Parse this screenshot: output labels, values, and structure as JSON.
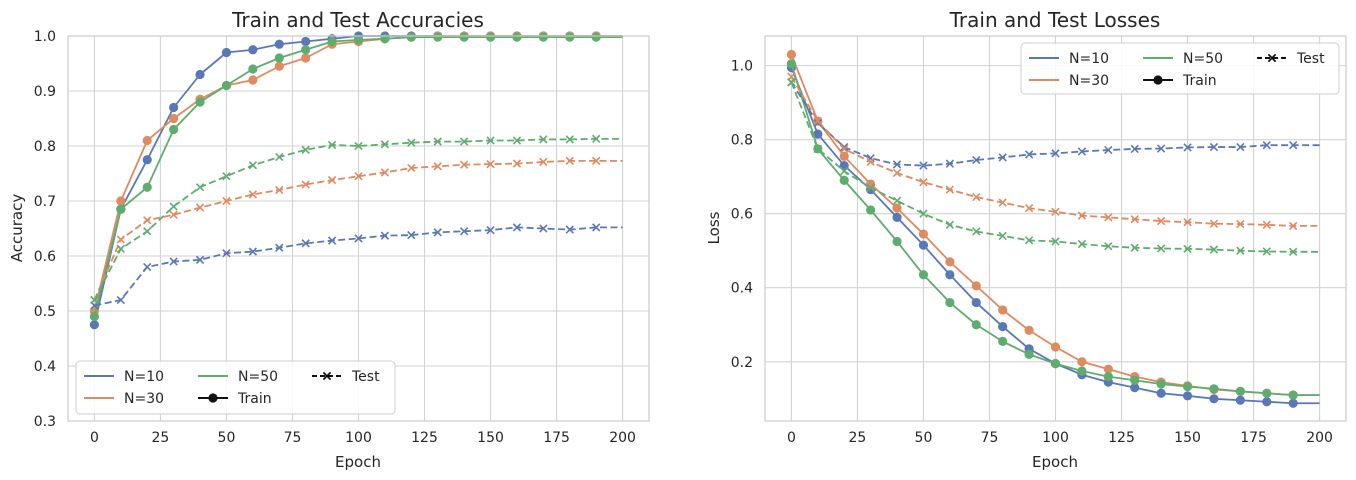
{
  "colors": {
    "N=10": "#5b78b6",
    "N=30": "#df8a5f",
    "N=50": "#5fad6e",
    "legend_black": "#111111",
    "grid": "#d3d3d3",
    "frame": "#cccccc"
  },
  "chart_data": [
    {
      "type": "line",
      "title": "Train and Test Accuracies",
      "xlabel": "Epoch",
      "ylabel": "Accuracy",
      "xlim": [
        -10,
        210
      ],
      "ylim": [
        0.3,
        1.0
      ],
      "xticks": [
        0,
        25,
        50,
        75,
        100,
        125,
        150,
        175,
        200
      ],
      "yticks": [
        0.3,
        0.4,
        0.5,
        0.6,
        0.7,
        0.8,
        0.9,
        1.0
      ],
      "xtick_labels": [
        "0",
        "25",
        "50",
        "75",
        "100",
        "125",
        "150",
        "175",
        "200"
      ],
      "ytick_labels": [
        "0.3",
        "0.4",
        "0.5",
        "0.6",
        "0.7",
        "0.8",
        "0.9",
        "1.0"
      ],
      "legend_location": "lower-left",
      "legend": {
        "n10": "N=10",
        "n30": "N=30",
        "n50": "N=50",
        "train": "Train",
        "test": "Test"
      },
      "marker_epochs": [
        0,
        10,
        20,
        30,
        40,
        50,
        60,
        70,
        80,
        90,
        100,
        110,
        120,
        130,
        140,
        150,
        160,
        170,
        180,
        190
      ],
      "series": [
        {
          "name": "N=10",
          "kind": "train",
          "values": [
            0.475,
            0.685,
            0.775,
            0.87,
            0.93,
            0.97,
            0.975,
            0.985,
            0.99,
            0.995,
            1.0,
            1.0,
            1.0,
            1.0,
            1.0,
            1.0,
            1.0,
            1.0,
            1.0,
            1.0
          ]
        },
        {
          "name": "N=30",
          "kind": "train",
          "values": [
            0.5,
            0.7,
            0.81,
            0.85,
            0.885,
            0.91,
            0.92,
            0.945,
            0.96,
            0.985,
            0.99,
            0.995,
            0.998,
            1.0,
            1.0,
            1.0,
            1.0,
            1.0,
            1.0,
            1.0
          ]
        },
        {
          "name": "N=50",
          "kind": "train",
          "values": [
            0.49,
            0.685,
            0.725,
            0.83,
            0.88,
            0.91,
            0.94,
            0.96,
            0.975,
            0.99,
            0.993,
            0.995,
            0.998,
            0.998,
            0.998,
            0.998,
            0.998,
            0.998,
            0.998,
            0.998
          ]
        },
        {
          "name": "N=10",
          "kind": "test",
          "values": [
            0.51,
            0.52,
            0.58,
            0.59,
            0.593,
            0.605,
            0.608,
            0.615,
            0.623,
            0.628,
            0.632,
            0.637,
            0.638,
            0.643,
            0.645,
            0.647,
            0.652,
            0.65,
            0.648,
            0.652
          ]
        },
        {
          "name": "N=30",
          "kind": "test",
          "values": [
            0.52,
            0.63,
            0.665,
            0.675,
            0.688,
            0.7,
            0.712,
            0.72,
            0.73,
            0.738,
            0.745,
            0.752,
            0.76,
            0.763,
            0.766,
            0.767,
            0.768,
            0.771,
            0.773,
            0.773
          ]
        },
        {
          "name": "N=50",
          "kind": "test",
          "values": [
            0.52,
            0.613,
            0.645,
            0.69,
            0.725,
            0.745,
            0.765,
            0.78,
            0.793,
            0.802,
            0.8,
            0.803,
            0.806,
            0.808,
            0.808,
            0.81,
            0.81,
            0.812,
            0.812,
            0.813
          ]
        }
      ]
    },
    {
      "type": "line",
      "title": "Train and Test Losses",
      "xlabel": "Epoch",
      "ylabel": "Loss",
      "xlim": [
        -10,
        210
      ],
      "ylim": [
        0.04,
        1.08
      ],
      "xticks": [
        0,
        25,
        50,
        75,
        100,
        125,
        150,
        175,
        200
      ],
      "yticks": [
        0.2,
        0.4,
        0.6,
        0.8,
        1.0
      ],
      "xtick_labels": [
        "0",
        "25",
        "50",
        "75",
        "100",
        "125",
        "150",
        "175",
        "200"
      ],
      "ytick_labels": [
        "0.2",
        "0.4",
        "0.6",
        "0.8",
        "1.0"
      ],
      "legend_location": "upper-right",
      "legend": {
        "n10": "N=10",
        "n30": "N=30",
        "n50": "N=50",
        "train": "Train",
        "test": "Test"
      },
      "marker_epochs": [
        0,
        10,
        20,
        30,
        40,
        50,
        60,
        70,
        80,
        90,
        100,
        110,
        120,
        130,
        140,
        150,
        160,
        170,
        180,
        190
      ],
      "series": [
        {
          "name": "N=10",
          "kind": "train",
          "values": [
            0.995,
            0.815,
            0.73,
            0.665,
            0.59,
            0.515,
            0.435,
            0.36,
            0.295,
            0.235,
            0.195,
            0.165,
            0.145,
            0.13,
            0.115,
            0.108,
            0.1,
            0.096,
            0.092,
            0.088
          ]
        },
        {
          "name": "N=30",
          "kind": "train",
          "values": [
            1.03,
            0.85,
            0.755,
            0.68,
            0.615,
            0.545,
            0.47,
            0.405,
            0.34,
            0.285,
            0.24,
            0.2,
            0.18,
            0.16,
            0.145,
            0.135,
            0.125,
            0.12,
            0.115,
            0.11
          ]
        },
        {
          "name": "N=50",
          "kind": "train",
          "values": [
            1.005,
            0.775,
            0.69,
            0.61,
            0.525,
            0.435,
            0.36,
            0.3,
            0.255,
            0.22,
            0.195,
            0.175,
            0.16,
            0.15,
            0.14,
            0.133,
            0.127,
            0.12,
            0.115,
            0.11
          ]
        },
        {
          "name": "N=10",
          "kind": "test",
          "values": [
            0.955,
            0.845,
            0.78,
            0.75,
            0.733,
            0.73,
            0.735,
            0.745,
            0.752,
            0.76,
            0.763,
            0.768,
            0.772,
            0.775,
            0.776,
            0.779,
            0.78,
            0.78,
            0.785,
            0.785
          ]
        },
        {
          "name": "N=30",
          "kind": "test",
          "values": [
            0.97,
            0.85,
            0.775,
            0.74,
            0.71,
            0.685,
            0.665,
            0.645,
            0.63,
            0.615,
            0.605,
            0.595,
            0.59,
            0.585,
            0.58,
            0.577,
            0.573,
            0.572,
            0.57,
            0.567
          ]
        },
        {
          "name": "N=50",
          "kind": "test",
          "values": [
            0.955,
            0.775,
            0.715,
            0.67,
            0.635,
            0.6,
            0.57,
            0.552,
            0.54,
            0.528,
            0.525,
            0.518,
            0.512,
            0.508,
            0.506,
            0.505,
            0.503,
            0.5,
            0.498,
            0.497
          ]
        }
      ]
    }
  ]
}
